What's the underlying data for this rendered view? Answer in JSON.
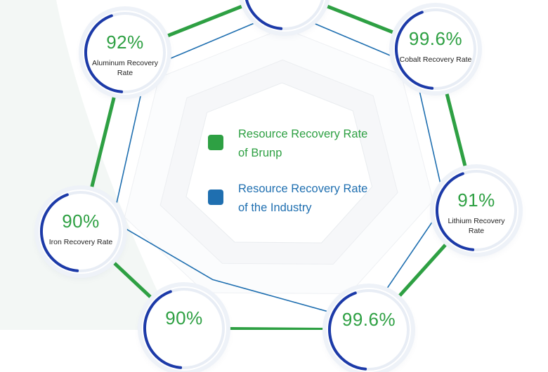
{
  "chart_data": {
    "type": "radar",
    "legend": [
      {
        "name": "Resource Recovery Rate of Brunp",
        "color": "#2ea043"
      },
      {
        "name": "Resource Recovery Rate of the Industry",
        "color": "#1f6fb0"
      }
    ],
    "categories": [
      {
        "label": "Cobalt Recovery Rate",
        "value": 99.6,
        "display": "99.6%"
      },
      {
        "label": "Lithium Recovery Rate",
        "value": 91,
        "display": "91%"
      },
      {
        "label": "",
        "value": 99.6,
        "display": "99.6%"
      },
      {
        "label": "",
        "value": null,
        "display": "90%"
      },
      {
        "label": "Iron Recovery Rate",
        "value": 90,
        "display": "90%"
      },
      {
        "label": "Aluminum Recovery Rate",
        "value": 92,
        "display": "92%"
      },
      {
        "label": "",
        "value": null,
        "display": ""
      }
    ]
  }
}
